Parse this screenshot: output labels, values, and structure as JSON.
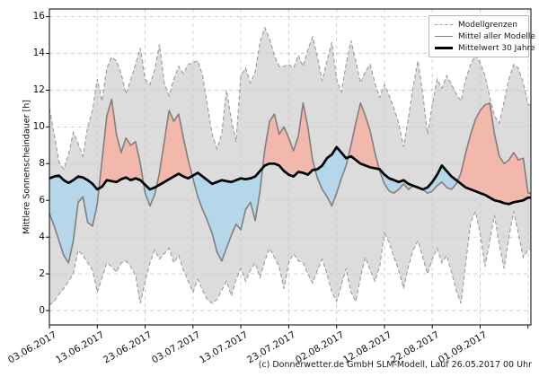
{
  "chart_data": {
    "type": "area",
    "title": "",
    "ylabel": "Mittlere Sonnenscheindauer [h]",
    "ylim": [
      -0.78,
      16.42
    ],
    "xlim_days": [
      0,
      100.6
    ],
    "grid": true,
    "y_ticks": [
      0,
      2,
      4,
      6,
      8,
      10,
      12,
      14,
      16
    ],
    "x_ticks": [
      {
        "day": 0,
        "label": "03.06.2017"
      },
      {
        "day": 10,
        "label": "13.06.2017"
      },
      {
        "day": 20,
        "label": "23.06.2017"
      },
      {
        "day": 30,
        "label": "03.07.2017"
      },
      {
        "day": 40,
        "label": "13.07.2017"
      },
      {
        "day": 50,
        "label": "23.07.2017"
      },
      {
        "day": 60,
        "label": "02.08.2017"
      },
      {
        "day": 70,
        "label": "12.08.2017"
      },
      {
        "day": 80,
        "label": "22.08.2017"
      },
      {
        "day": 90,
        "label": "01.09.2017"
      },
      {
        "day": 100,
        "label": ""
      }
    ],
    "legend": [
      {
        "label": "Modellgrenzen",
        "style": "dashed-gray"
      },
      {
        "label": "Mittel aller Modelle",
        "style": "solid-gray"
      },
      {
        "label": "Mittelwert 30 Jahre",
        "style": "solid-black-thick"
      }
    ],
    "legend_position": "upper right",
    "colors": {
      "band_fill": "#dcdcdc",
      "band_edge": "#9a9a9a",
      "above_fill": "#f2b8ab",
      "below_fill": "#b5d7e9",
      "model_mean_line": "#7f7f7f",
      "climate_line": "#000000",
      "gridline": "#c9c9c9",
      "spine": "#000000"
    },
    "series": [
      {
        "key": "upper",
        "name": "Modellgrenzen (obere Grenze)",
        "values": [
          11.0,
          9.6,
          8.1,
          7.7,
          8.5,
          9.7,
          9.1,
          8.4,
          10.0,
          10.9,
          12.6,
          11.4,
          13.2,
          13.8,
          13.6,
          12.9,
          11.8,
          12.6,
          13.4,
          14.3,
          12.6,
          12.3,
          13.1,
          14.5,
          12.4,
          11.7,
          12.6,
          13.3,
          12.9,
          13.4,
          13.5,
          13.6,
          12.8,
          11.2,
          9.6,
          8.8,
          9.6,
          12.0,
          10.4,
          9.2,
          12.8,
          13.2,
          12.4,
          13.0,
          14.6,
          15.4,
          14.8,
          13.9,
          13.3,
          13.3,
          13.4,
          13.2,
          13.9,
          13.3,
          14.2,
          14.9,
          13.8,
          12.5,
          13.6,
          14.6,
          12.6,
          11.9,
          13.4,
          14.7,
          13.6,
          12.4,
          13.0,
          13.4,
          12.4,
          11.6,
          12.3,
          11.7,
          11.0,
          10.2,
          8.9,
          10.5,
          12.2,
          13.6,
          11.8,
          9.6,
          11.2,
          12.6,
          12.1,
          12.8,
          12.3,
          11.8,
          11.4,
          12.6,
          13.4,
          13.9,
          13.5,
          12.8,
          11.6,
          10.6,
          10.2,
          11.4,
          12.6,
          13.4,
          13.2,
          12.4,
          11.2
        ]
      },
      {
        "key": "lower",
        "name": "Modellgrenzen (untere Grenze)",
        "values": [
          0.3,
          0.5,
          0.9,
          1.2,
          1.6,
          2.0,
          3.3,
          3.0,
          2.6,
          2.2,
          1.0,
          1.8,
          2.6,
          2.4,
          2.1,
          2.6,
          2.7,
          2.4,
          1.9,
          0.4,
          1.6,
          2.6,
          3.3,
          2.8,
          3.1,
          3.4,
          2.6,
          3.0,
          2.2,
          1.6,
          1.0,
          1.7,
          1.1,
          0.6,
          0.4,
          0.6,
          1.1,
          1.6,
          0.8,
          1.7,
          2.3,
          1.6,
          2.2,
          2.6,
          1.8,
          2.7,
          3.4,
          2.9,
          2.4,
          1.2,
          2.6,
          3.1,
          2.7,
          2.6,
          2.0,
          1.5,
          2.2,
          2.8,
          2.0,
          1.0,
          0.5,
          1.4,
          2.3,
          1.0,
          0.5,
          1.8,
          2.9,
          2.2,
          1.6,
          2.4,
          4.2,
          3.7,
          2.9,
          2.2,
          1.2,
          2.4,
          3.3,
          3.8,
          2.9,
          2.0,
          2.8,
          3.4,
          2.6,
          3.0,
          2.1,
          1.1,
          0.4,
          2.6,
          4.8,
          5.4,
          4.2,
          2.4,
          3.8,
          5.2,
          3.6,
          2.3,
          4.0,
          5.4,
          4.2,
          2.9,
          3.3
        ]
      },
      {
        "key": "mean",
        "name": "Mittel aller Modelle",
        "values": [
          5.3,
          4.6,
          3.8,
          3.0,
          2.6,
          3.8,
          5.9,
          6.2,
          4.8,
          4.6,
          5.8,
          8.2,
          10.6,
          11.5,
          9.6,
          8.6,
          9.4,
          9.0,
          9.2,
          8.0,
          6.4,
          5.7,
          6.3,
          7.5,
          9.2,
          10.9,
          10.3,
          10.7,
          9.4,
          8.2,
          7.2,
          6.2,
          5.5,
          4.9,
          4.2,
          3.2,
          2.7,
          3.4,
          4.1,
          4.7,
          4.4,
          5.5,
          5.9,
          4.9,
          6.5,
          8.8,
          10.3,
          10.7,
          9.6,
          10.0,
          9.4,
          8.7,
          9.5,
          11.3,
          10.0,
          8.2,
          7.2,
          6.6,
          6.2,
          5.7,
          6.4,
          7.2,
          7.9,
          9.0,
          10.2,
          11.3,
          10.6,
          9.8,
          8.6,
          7.6,
          6.9,
          6.5,
          6.4,
          6.6,
          6.9,
          6.6,
          6.8,
          6.7,
          6.6,
          6.4,
          6.5,
          6.8,
          7.0,
          6.7,
          6.6,
          6.9,
          7.5,
          8.6,
          9.6,
          10.4,
          10.9,
          11.2,
          11.3,
          9.6,
          8.4,
          8.0,
          8.2,
          8.6,
          8.2,
          8.3,
          6.4
        ]
      },
      {
        "key": "clim",
        "name": "Mittelwert 30 Jahre",
        "values": [
          7.2,
          7.3,
          7.35,
          7.1,
          6.95,
          7.1,
          7.3,
          7.25,
          7.1,
          6.9,
          6.6,
          6.75,
          7.1,
          7.05,
          7.0,
          7.15,
          7.25,
          7.1,
          7.2,
          7.1,
          6.85,
          6.6,
          6.7,
          6.85,
          7.0,
          7.15,
          7.3,
          7.45,
          7.3,
          7.2,
          7.35,
          7.5,
          7.3,
          7.1,
          6.9,
          7.0,
          7.1,
          7.05,
          7.0,
          7.1,
          7.2,
          7.15,
          7.2,
          7.3,
          7.6,
          7.9,
          8.0,
          8.0,
          7.9,
          7.6,
          7.4,
          7.3,
          7.55,
          7.5,
          7.4,
          7.65,
          7.7,
          7.9,
          8.3,
          8.5,
          8.9,
          8.6,
          8.3,
          8.4,
          8.2,
          8.0,
          7.9,
          7.8,
          7.75,
          7.7,
          7.4,
          7.2,
          7.1,
          7.0,
          7.1,
          6.9,
          6.8,
          6.7,
          6.6,
          6.7,
          7.0,
          7.4,
          7.9,
          7.6,
          7.3,
          7.1,
          6.9,
          6.7,
          6.6,
          6.5,
          6.4,
          6.3,
          6.15,
          6.0,
          5.95,
          5.85,
          5.8,
          5.9,
          5.95,
          6.0,
          6.15
        ]
      }
    ]
  },
  "footer": {
    "credit": "(c) Donnerwetter.de GmbH SLM-Modell, Lauf 26.05.2017 00 Uhr"
  }
}
